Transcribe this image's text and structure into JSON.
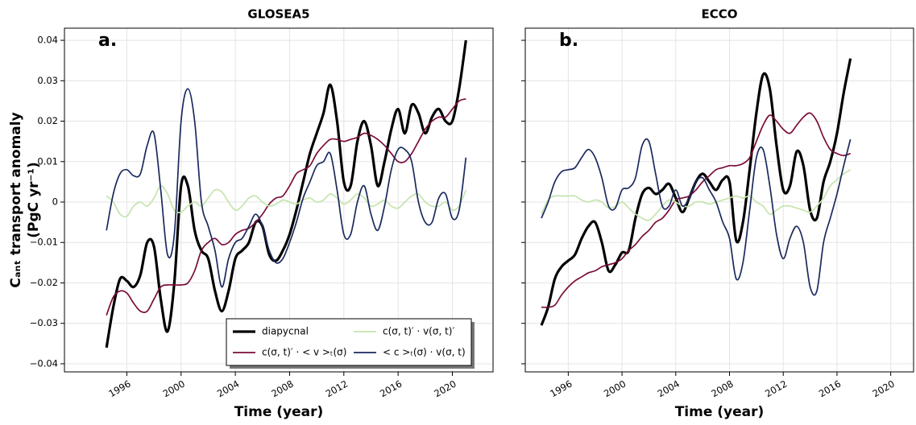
{
  "chart_data": [
    {
      "type": "line",
      "title": "GLOSEA5",
      "xlabel": "Time (year)",
      "ylabel": [
        "Cₐₙₜ transport anomaly",
        "(PgC yr⁻¹)"
      ],
      "annotation": "a.",
      "xlim": [
        1991.4,
        2023
      ],
      "ylim": [
        -0.042,
        0.043
      ],
      "xticks": [
        1996,
        2000,
        2004,
        2008,
        2012,
        2016,
        2020
      ],
      "yticks": [
        {
          "value": -0.04,
          "label": "−0.04"
        },
        {
          "value": -0.03,
          "label": "−0.03"
        },
        {
          "value": -0.02,
          "label": "−0.02"
        },
        {
          "value": -0.01,
          "label": "−0.01"
        },
        0,
        0.01,
        0.02,
        0.03,
        0.04
      ],
      "grid": true,
      "legend": "lower right",
      "x": [
        1994.5,
        1995,
        1995.5,
        1996,
        1996.5,
        1997,
        1997.5,
        1998,
        1998.5,
        1999,
        1999.5,
        2000,
        2000.5,
        2001,
        2001.5,
        2002,
        2002.5,
        2003,
        2003.5,
        2004,
        2004.5,
        2005,
        2005.5,
        2006,
        2006.5,
        2007,
        2007.5,
        2008,
        2008.5,
        2009,
        2009.5,
        2010,
        2010.5,
        2011,
        2011.5,
        2012,
        2012.5,
        2013,
        2013.5,
        2014,
        2014.5,
        2015,
        2015.5,
        2016,
        2016.5,
        2017,
        2017.5,
        2018,
        2018.5,
        2019,
        2019.5,
        2020,
        2020.5,
        2021
      ],
      "series": [
        {
          "name": "diapycnal",
          "color": "#000000",
          "values": [
            -0.036,
            -0.026,
            -0.019,
            -0.0195,
            -0.021,
            -0.018,
            -0.01,
            -0.011,
            -0.024,
            -0.032,
            -0.02,
            0.004,
            0.004,
            -0.007,
            -0.012,
            -0.014,
            -0.022,
            -0.027,
            -0.022,
            -0.014,
            -0.012,
            -0.01,
            -0.005,
            -0.006,
            -0.013,
            -0.0145,
            -0.012,
            -0.008,
            -0.002,
            0.005,
            0.012,
            0.017,
            0.022,
            0.029,
            0.02,
            0.005,
            0.004,
            0.015,
            0.02,
            0.014,
            0.004,
            0.01,
            0.018,
            0.023,
            0.017,
            0.024,
            0.022,
            0.017,
            0.021,
            0.023,
            0.02,
            0.02,
            0.028,
            0.04
          ]
        },
        {
          "name": "c(σ, t)′ · < v >ₜ(σ)",
          "color": "#7a0d3a",
          "values": [
            -0.028,
            -0.0235,
            -0.022,
            -0.0225,
            -0.025,
            -0.027,
            -0.027,
            -0.024,
            -0.021,
            -0.0205,
            -0.0205,
            -0.0205,
            -0.02,
            -0.017,
            -0.012,
            -0.01,
            -0.009,
            -0.0105,
            -0.01,
            -0.008,
            -0.007,
            -0.0065,
            -0.005,
            -0.003,
            -0.0005,
            0.001,
            0.0015,
            0.004,
            0.007,
            0.008,
            0.009,
            0.012,
            0.014,
            0.0155,
            0.0155,
            0.015,
            0.0155,
            0.016,
            0.017,
            0.0165,
            0.0155,
            0.014,
            0.012,
            0.01,
            0.01,
            0.012,
            0.015,
            0.018,
            0.02,
            0.021,
            0.021,
            0.023,
            0.025,
            0.0255
          ]
        },
        {
          "name": "c(σ, t)′ · v(σ, t)′",
          "color": "#c5e4ad",
          "values": [
            0.0015,
            0,
            -0.003,
            -0.0035,
            -0.001,
            0,
            -0.001,
            0.001,
            0.004,
            0.002,
            -0.002,
            -0.0025,
            -0.001,
            0,
            -0.001,
            0.001,
            0.003,
            0.0025,
            0,
            -0.002,
            -0.001,
            0.001,
            0.0015,
            0,
            -0.001,
            -0.0005,
            0.0005,
            0,
            -0.0005,
            0.0005,
            0.001,
            0,
            0.0005,
            0.002,
            0.001,
            -0.0005,
            0.0005,
            0.002,
            0.001,
            -0.001,
            -0.0005,
            0.0005,
            -0.001,
            -0.0015,
            0,
            0.0015,
            0.002,
            0,
            -0.001,
            -0.001,
            0,
            -0.002,
            -0.001,
            0.003
          ]
        },
        {
          "name": "< c >ₜ(σ) · v(σ, t)",
          "color": "#1a2a5e",
          "values": [
            -0.007,
            0.002,
            0.007,
            0.008,
            0.0065,
            0.007,
            0.014,
            0.017,
            0.003,
            -0.013,
            -0.008,
            0.02,
            0.028,
            0.02,
            0,
            -0.006,
            -0.012,
            -0.021,
            -0.014,
            -0.01,
            -0.009,
            -0.006,
            -0.003,
            -0.006,
            -0.012,
            -0.015,
            -0.014,
            -0.01,
            -0.005,
            0.001,
            0.005,
            0.009,
            0.01,
            0.012,
            0.003,
            -0.008,
            -0.008,
            0,
            0.004,
            -0.003,
            -0.007,
            -0.001,
            0.008,
            0.013,
            0.013,
            0.01,
            0,
            -0.005,
            -0.005,
            0.001,
            0.002,
            -0.004,
            -0.002,
            0.011
          ]
        }
      ]
    },
    {
      "type": "line",
      "title": "ECCO",
      "xlabel": "Time (year)",
      "annotation": "b.",
      "xlim": [
        1992.8,
        2021.7
      ],
      "ylim": [
        -0.042,
        0.043
      ],
      "xticks": [
        1996,
        2000,
        2004,
        2008,
        2012,
        2016,
        2020
      ],
      "yticks": [
        -0.04,
        -0.03,
        -0.02,
        -0.01,
        0,
        0.01,
        0.02,
        0.03,
        0.04
      ],
      "grid": true,
      "x": [
        1994,
        1994.5,
        1995,
        1995.5,
        1996,
        1996.5,
        1997,
        1997.5,
        1998,
        1998.5,
        1999,
        1999.5,
        2000,
        2000.5,
        2001,
        2001.5,
        2002,
        2002.5,
        2003,
        2003.5,
        2004,
        2004.5,
        2005,
        2005.5,
        2006,
        2006.5,
        2007,
        2007.5,
        2008,
        2008.5,
        2009,
        2009.5,
        2010,
        2010.5,
        2011,
        2011.5,
        2012,
        2012.5,
        2013,
        2013.5,
        2014,
        2014.5,
        2015,
        2015.5,
        2016,
        2016.5,
        2017
      ],
      "series": [
        {
          "name": "diapycnal",
          "color": "#000000",
          "values": [
            -0.0305,
            -0.026,
            -0.019,
            -0.016,
            -0.0145,
            -0.013,
            -0.009,
            -0.006,
            -0.005,
            -0.01,
            -0.017,
            -0.0155,
            -0.0125,
            -0.012,
            -0.004,
            0.002,
            0.0035,
            0.002,
            0.003,
            0.0045,
            0.001,
            -0.0025,
            0.001,
            0.005,
            0.007,
            0.005,
            0.003,
            0.0055,
            0.005,
            -0.0095,
            -0.005,
            0.008,
            0.022,
            0.0315,
            0.028,
            0.014,
            0.003,
            0.004,
            0.0125,
            0.009,
            -0.002,
            -0.004,
            0.005,
            0.01,
            0.017,
            0.027,
            0.0355
          ]
        },
        {
          "name": "c(σ, t)′ · < v >ₜ(σ)",
          "color": "#7a0d3a",
          "values": [
            -0.026,
            -0.026,
            -0.0255,
            -0.023,
            -0.021,
            -0.0195,
            -0.0185,
            -0.0175,
            -0.017,
            -0.016,
            -0.0155,
            -0.015,
            -0.014,
            -0.012,
            -0.0105,
            -0.0085,
            -0.007,
            -0.005,
            -0.004,
            -0.002,
            0.0005,
            0.001,
            0.0015,
            0.003,
            0.005,
            0.0065,
            0.008,
            0.0085,
            0.009,
            0.009,
            0.0095,
            0.011,
            0.015,
            0.019,
            0.0215,
            0.02,
            0.018,
            0.017,
            0.019,
            0.021,
            0.022,
            0.02,
            0.016,
            0.013,
            0.012,
            0.0115,
            0.012
          ]
        },
        {
          "name": "c(σ, t)′ · v(σ, t)′",
          "color": "#c5e4ad",
          "values": [
            -0.003,
            0.0005,
            0.0015,
            0.0015,
            0.0015,
            0.0015,
            0.0005,
            0,
            0.0005,
            0,
            -0.0015,
            -0.001,
            0,
            -0.0015,
            -0.003,
            -0.004,
            -0.0045,
            -0.003,
            -0.001,
            0.0005,
            0,
            -0.001,
            -0.001,
            0,
            0,
            -0.0005,
            0,
            0.0005,
            0.001,
            0.0015,
            0.001,
            0.0015,
            0,
            -0.001,
            -0.003,
            -0.002,
            -0.001,
            -0.001,
            -0.0015,
            -0.002,
            -0.0025,
            -0.001,
            0.001,
            0.004,
            0.0055,
            0.007,
            0.008
          ]
        },
        {
          "name": "< c >ₜ(σ) · v(σ, t)",
          "color": "#1a2a5e",
          "values": [
            -0.004,
            0,
            0.005,
            0.0075,
            0.008,
            0.0085,
            0.011,
            0.013,
            0.011,
            0.006,
            -0.001,
            -0.0015,
            0.003,
            0.0035,
            0.006,
            0.014,
            0.015,
            0.007,
            -0.001,
            -0.001,
            0.003,
            -0.001,
            0.001,
            0.005,
            0.006,
            0.003,
            0,
            -0.005,
            -0.009,
            -0.019,
            -0.015,
            -0.002,
            0.011,
            0.013,
            0.004,
            -0.008,
            -0.014,
            -0.009,
            -0.006,
            -0.01,
            -0.021,
            -0.022,
            -0.01,
            -0.004,
            0.002,
            0.009,
            0.0155
          ]
        }
      ]
    }
  ]
}
